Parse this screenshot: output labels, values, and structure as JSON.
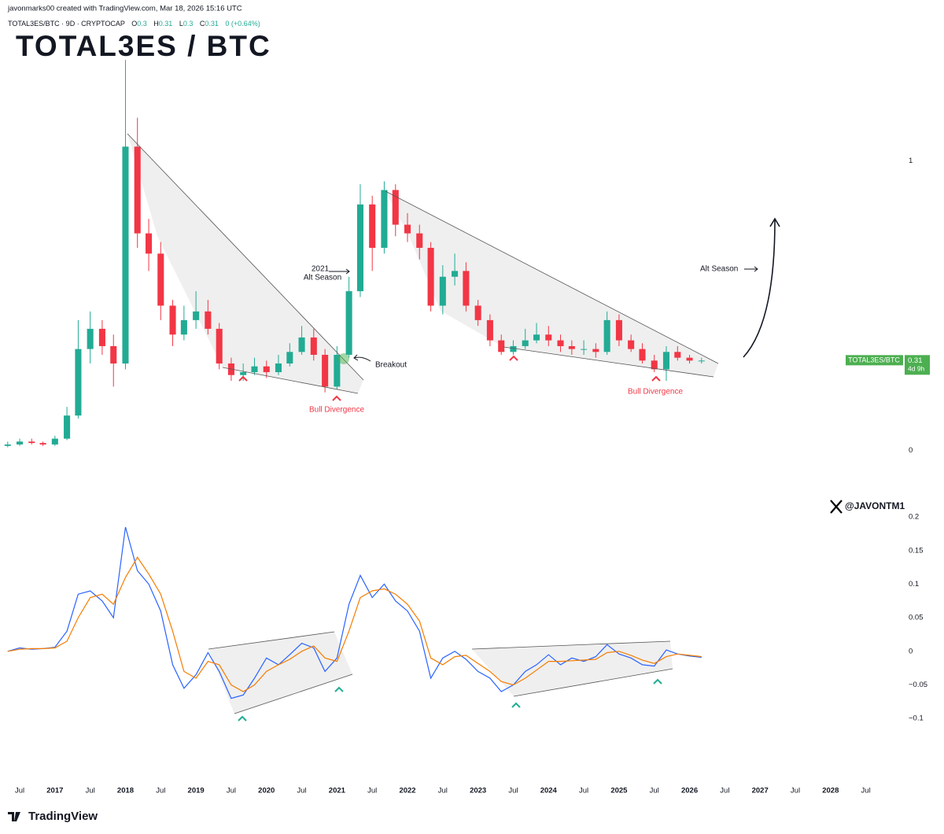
{
  "header": {
    "credit": "javonmarks00 created with TradingView.com, Mar 18, 2026 15:16 UTC",
    "watermark": "@JAVONTM1"
  },
  "footer": {
    "brand": "TradingView"
  },
  "chart_data": [
    {
      "type": "candlestick",
      "title": "TOTAL3ES / BTC",
      "symbol": "TOTAL3ES/BTC · 9D · CRYPTOCAP",
      "ohlc": [
        {
          "label": "O",
          "value": 0.3
        },
        {
          "label": "H",
          "value": 0.31
        },
        {
          "label": "L",
          "value": 0.3
        },
        {
          "label": "C",
          "value": 0.31
        }
      ],
      "change": "0 (+0.64%)",
      "price_label": {
        "name": "TOTAL3ES/BTC",
        "value": 0.31,
        "countdown": "4d 9h",
        "color": "#4caf50"
      },
      "up_color": "#22ab94",
      "down_color": "#f23645",
      "x": [
        2016.33,
        2016.5,
        2016.67,
        2016.83,
        2017,
        2017.17,
        2017.33,
        2017.5,
        2017.67,
        2017.83,
        2018,
        2018.17,
        2018.33,
        2018.5,
        2018.67,
        2018.83,
        2019,
        2019.17,
        2019.33,
        2019.5,
        2019.67,
        2019.83,
        2020,
        2020.17,
        2020.33,
        2020.5,
        2020.67,
        2020.83,
        2021,
        2021.17,
        2021.33,
        2021.5,
        2021.67,
        2021.83,
        2022,
        2022.17,
        2022.33,
        2022.5,
        2022.67,
        2022.83,
        2023,
        2023.17,
        2023.33,
        2023.5,
        2023.67,
        2023.83,
        2024,
        2024.17,
        2024.33,
        2024.5,
        2024.67,
        2024.83,
        2025,
        2025.17,
        2025.33,
        2025.5,
        2025.67,
        2025.83,
        2026,
        2026.17
      ],
      "open": [
        0.015,
        0.02,
        0.03,
        0.025,
        0.02,
        0.04,
        0.12,
        0.35,
        0.42,
        0.36,
        0.3,
        1.05,
        0.75,
        0.68,
        0.5,
        0.4,
        0.45,
        0.48,
        0.42,
        0.3,
        0.26,
        0.27,
        0.29,
        0.27,
        0.3,
        0.34,
        0.39,
        0.33,
        0.22,
        0.33,
        0.55,
        0.85,
        0.7,
        0.9,
        0.78,
        0.75,
        0.7,
        0.5,
        0.6,
        0.62,
        0.5,
        0.45,
        0.38,
        0.34,
        0.36,
        0.38,
        0.4,
        0.38,
        0.36,
        0.35,
        0.35,
        0.34,
        0.45,
        0.38,
        0.35,
        0.31,
        0.28,
        0.34,
        0.32,
        0.31
      ],
      "high": [
        0.03,
        0.04,
        0.04,
        0.03,
        0.05,
        0.15,
        0.45,
        0.48,
        0.45,
        0.4,
        1.35,
        1.15,
        0.8,
        0.72,
        0.52,
        0.5,
        0.55,
        0.52,
        0.44,
        0.32,
        0.3,
        0.32,
        0.31,
        0.33,
        0.37,
        0.43,
        0.42,
        0.35,
        0.36,
        0.6,
        0.92,
        0.88,
        0.93,
        0.92,
        0.82,
        0.78,
        0.72,
        0.64,
        0.68,
        0.65,
        0.52,
        0.47,
        0.4,
        0.38,
        0.42,
        0.44,
        0.43,
        0.4,
        0.38,
        0.38,
        0.37,
        0.48,
        0.47,
        0.4,
        0.37,
        0.33,
        0.36,
        0.36,
        0.33,
        0.32
      ],
      "low": [
        0.01,
        0.015,
        0.02,
        0.015,
        0.015,
        0.035,
        0.11,
        0.3,
        0.33,
        0.22,
        0.28,
        0.7,
        0.62,
        0.45,
        0.36,
        0.38,
        0.42,
        0.4,
        0.28,
        0.24,
        0.24,
        0.26,
        0.25,
        0.26,
        0.29,
        0.33,
        0.31,
        0.2,
        0.21,
        0.32,
        0.53,
        0.62,
        0.68,
        0.74,
        0.72,
        0.66,
        0.48,
        0.47,
        0.57,
        0.48,
        0.43,
        0.36,
        0.33,
        0.33,
        0.35,
        0.37,
        0.36,
        0.34,
        0.33,
        0.33,
        0.32,
        0.33,
        0.36,
        0.34,
        0.3,
        0.27,
        0.24,
        0.31,
        0.3,
        0.3
      ],
      "close": [
        0.02,
        0.03,
        0.025,
        0.02,
        0.04,
        0.12,
        0.35,
        0.42,
        0.36,
        0.3,
        1.05,
        0.75,
        0.68,
        0.5,
        0.4,
        0.45,
        0.48,
        0.42,
        0.3,
        0.26,
        0.27,
        0.29,
        0.27,
        0.3,
        0.34,
        0.39,
        0.33,
        0.22,
        0.33,
        0.55,
        0.85,
        0.7,
        0.9,
        0.78,
        0.75,
        0.7,
        0.5,
        0.6,
        0.62,
        0.5,
        0.45,
        0.38,
        0.34,
        0.36,
        0.38,
        0.4,
        0.38,
        0.36,
        0.35,
        0.35,
        0.34,
        0.45,
        0.38,
        0.35,
        0.31,
        0.28,
        0.34,
        0.32,
        0.31,
        0.31
      ],
      "xlim": [
        2016.31,
        2028.85
      ],
      "ylim": [
        -0.1,
        1.47
      ],
      "yticks": [
        0,
        1
      ],
      "annotations": [
        {
          "text": "2021",
          "color": "#131722"
        },
        {
          "text": "Alt Season",
          "color": "#131722"
        },
        {
          "text": "Breakout",
          "color": "#131722"
        },
        {
          "text": "Bull Divergence",
          "color": "#f23645"
        },
        {
          "text": "Bull Divergence",
          "color": "#f23645"
        },
        {
          "text": "Alt Season",
          "color": "#131722"
        }
      ]
    },
    {
      "type": "line",
      "x": [
        2016.33,
        2016.5,
        2016.67,
        2016.83,
        2017,
        2017.17,
        2017.33,
        2017.5,
        2017.67,
        2017.83,
        2018,
        2018.17,
        2018.33,
        2018.5,
        2018.67,
        2018.83,
        2019,
        2019.17,
        2019.33,
        2019.5,
        2019.67,
        2019.83,
        2020,
        2020.17,
        2020.33,
        2020.5,
        2020.67,
        2020.83,
        2021,
        2021.17,
        2021.33,
        2021.5,
        2021.67,
        2021.83,
        2022,
        2022.17,
        2022.33,
        2022.5,
        2022.67,
        2022.83,
        2023,
        2023.17,
        2023.33,
        2023.5,
        2023.67,
        2023.83,
        2024,
        2024.17,
        2024.33,
        2024.5,
        2024.67,
        2024.83,
        2025,
        2025.17,
        2025.33,
        2025.5,
        2025.67,
        2025.83,
        2026,
        2026.17
      ],
      "series": [
        {
          "color": "#2962ff",
          "values": [
            0.0,
            0.005,
            0.003,
            0.004,
            0.006,
            0.03,
            0.085,
            0.09,
            0.075,
            0.05,
            0.185,
            0.12,
            0.1,
            0.06,
            -0.02,
            -0.055,
            -0.035,
            -0.002,
            -0.03,
            -0.07,
            -0.065,
            -0.04,
            -0.01,
            -0.02,
            -0.005,
            0.012,
            0.005,
            -0.03,
            -0.01,
            0.07,
            0.113,
            0.08,
            0.1,
            0.075,
            0.06,
            0.03,
            -0.04,
            -0.01,
            0.0,
            -0.012,
            -0.03,
            -0.04,
            -0.06,
            -0.05,
            -0.03,
            -0.02,
            -0.005,
            -0.02,
            -0.01,
            -0.015,
            -0.008,
            0.01,
            -0.004,
            -0.01,
            -0.02,
            -0.022,
            0.002,
            -0.004,
            -0.007,
            -0.009
          ]
        },
        {
          "color": "#f57c00",
          "values": [
            0.0,
            0.003,
            0.004,
            0.004,
            0.005,
            0.015,
            0.05,
            0.08,
            0.085,
            0.07,
            0.11,
            0.14,
            0.115,
            0.085,
            0.03,
            -0.03,
            -0.04,
            -0.015,
            -0.02,
            -0.05,
            -0.06,
            -0.05,
            -0.03,
            -0.02,
            -0.012,
            0.0,
            0.008,
            -0.01,
            -0.015,
            0.03,
            0.08,
            0.09,
            0.093,
            0.085,
            0.07,
            0.045,
            -0.01,
            -0.02,
            -0.008,
            -0.006,
            -0.018,
            -0.03,
            -0.045,
            -0.05,
            -0.04,
            -0.028,
            -0.015,
            -0.015,
            -0.014,
            -0.013,
            -0.012,
            -0.002,
            0.0,
            -0.006,
            -0.013,
            -0.018,
            -0.008,
            -0.004,
            -0.006,
            -0.008
          ]
        }
      ],
      "xlim": [
        2016.31,
        2028.85
      ],
      "ylim": [
        -0.19,
        0.22
      ],
      "yticks": [
        {
          "value": -0.1,
          "label": "−0.1"
        },
        {
          "value": -0.05,
          "label": "−0.05"
        },
        0,
        0.05,
        0.1,
        0.15,
        0.2
      ],
      "xticks": [
        {
          "value": 2016.5,
          "label": "Jul"
        },
        2017,
        {
          "value": 2017.5,
          "label": "Jul"
        },
        2018,
        {
          "value": 2018.5,
          "label": "Jul"
        },
        2019,
        {
          "value": 2019.5,
          "label": "Jul"
        },
        2020,
        {
          "value": 2020.5,
          "label": "Jul"
        },
        2021,
        {
          "value": 2021.5,
          "label": "Jul"
        },
        2022,
        {
          "value": 2022.5,
          "label": "Jul"
        },
        2023,
        {
          "value": 2023.5,
          "label": "Jul"
        },
        2024,
        {
          "value": 2024.5,
          "label": "Jul"
        },
        2025,
        {
          "value": 2025.5,
          "label": "Jul"
        },
        2026,
        {
          "value": 2026.5,
          "label": "Jul"
        },
        2027,
        {
          "value": 2027.5,
          "label": "Jul"
        },
        2028,
        {
          "value": 2028.5,
          "label": "Jul"
        }
      ]
    }
  ]
}
